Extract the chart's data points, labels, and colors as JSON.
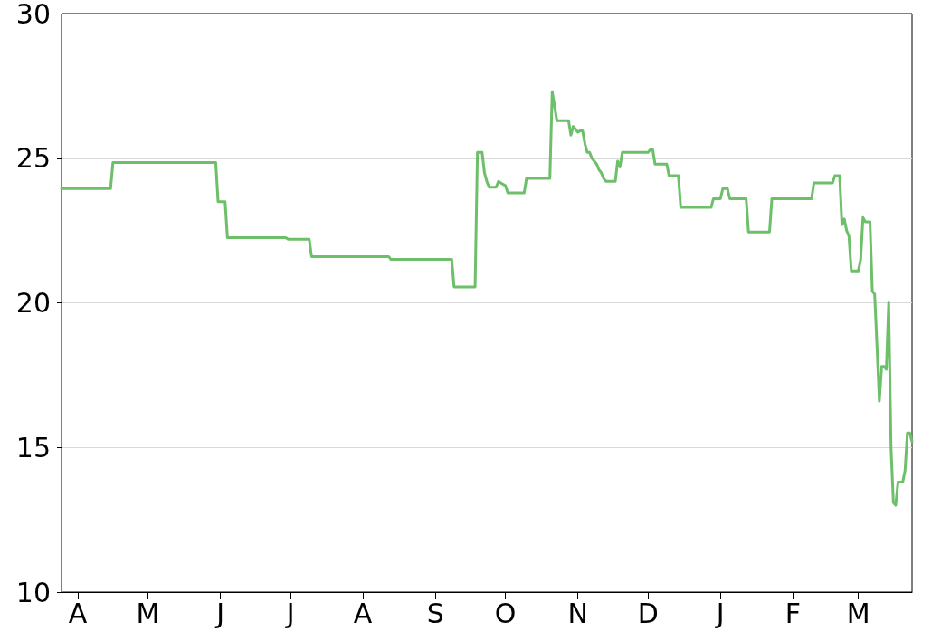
{
  "chart_data": {
    "type": "line",
    "color": "#6dbf6a",
    "categories": [
      null,
      null,
      null,
      null,
      null,
      null,
      null,
      "A",
      null,
      null,
      null,
      null,
      null,
      null,
      null,
      null,
      null,
      null,
      null,
      null,
      null,
      null,
      null,
      null,
      null,
      null,
      null,
      null,
      null,
      null,
      null,
      null,
      null,
      null,
      null,
      null,
      null,
      "M",
      null,
      null,
      null,
      null,
      null,
      null,
      null,
      null,
      null,
      null,
      null,
      null,
      null,
      null,
      null,
      null,
      null,
      null,
      null,
      null,
      null,
      null,
      null,
      null,
      null,
      null,
      null,
      null,
      null,
      null,
      "J",
      null,
      null,
      null,
      null,
      null,
      null,
      null,
      null,
      null,
      null,
      null,
      null,
      null,
      null,
      null,
      null,
      null,
      null,
      null,
      null,
      null,
      null,
      null,
      null,
      null,
      null,
      null,
      null,
      null,
      "J",
      null,
      null,
      null,
      null,
      null,
      null,
      null,
      null,
      null,
      null,
      null,
      null,
      null,
      null,
      null,
      null,
      null,
      null,
      null,
      null,
      null,
      null,
      null,
      null,
      null,
      null,
      null,
      null,
      null,
      null,
      "A",
      null,
      null,
      null,
      null,
      null,
      null,
      null,
      null,
      null,
      null,
      null,
      null,
      null,
      null,
      null,
      null,
      null,
      null,
      null,
      null,
      null,
      null,
      null,
      null,
      null,
      null,
      null,
      null,
      null,
      null,
      "S",
      null,
      null,
      null,
      null,
      null,
      null,
      null,
      null,
      null,
      null,
      null,
      null,
      null,
      null,
      null,
      null,
      null,
      null,
      null,
      null,
      null,
      null,
      null,
      null,
      null,
      null,
      null,
      null,
      null,
      "O",
      null,
      null,
      null,
      null,
      null,
      null,
      null,
      null,
      null,
      null,
      null,
      null,
      null,
      null,
      null,
      null,
      null,
      null,
      null,
      null,
      null,
      null,
      null,
      null,
      null,
      null,
      null,
      null,
      null,
      null,
      "N",
      null,
      null,
      null,
      null,
      null,
      null,
      null,
      null,
      null,
      null,
      null,
      null,
      null,
      null,
      null,
      null,
      null,
      null,
      null,
      null,
      null,
      null,
      null,
      null,
      null,
      null,
      null,
      null,
      null,
      "D",
      null,
      null,
      null,
      null,
      null,
      null,
      null,
      null,
      null,
      null,
      null,
      null,
      null,
      null,
      null,
      null,
      null,
      null,
      null,
      null,
      null,
      null,
      null,
      null,
      null,
      null,
      null,
      null,
      null,
      null,
      "J",
      null,
      null,
      null,
      null,
      null,
      null,
      null,
      null,
      null,
      null,
      null,
      null,
      null,
      null,
      null,
      null,
      null,
      null,
      null,
      null,
      null,
      null,
      null,
      null,
      null,
      null,
      null,
      null,
      null,
      null,
      "F",
      null,
      null,
      null,
      null,
      null,
      null,
      null,
      null,
      null,
      null,
      null,
      null,
      null,
      null,
      null,
      null,
      null,
      null,
      null,
      null,
      null,
      null,
      null,
      null,
      null,
      null,
      null,
      "M",
      null,
      null,
      null,
      null,
      null,
      null,
      null,
      null,
      null,
      null,
      null,
      null,
      null,
      null,
      null,
      null,
      null,
      null,
      null,
      null,
      null,
      null,
      null
    ],
    "values": [
      23.95,
      23.95,
      23.95,
      23.95,
      23.95,
      23.95,
      23.95,
      23.95,
      23.95,
      23.95,
      23.95,
      23.95,
      23.95,
      23.95,
      23.95,
      23.95,
      23.95,
      23.95,
      23.95,
      23.95,
      23.95,
      23.95,
      24.85,
      24.85,
      24.85,
      24.85,
      24.85,
      24.85,
      24.85,
      24.85,
      24.85,
      24.85,
      24.85,
      24.85,
      24.85,
      24.85,
      24.85,
      24.85,
      24.85,
      24.85,
      24.85,
      24.85,
      24.85,
      24.85,
      24.85,
      24.85,
      24.85,
      24.85,
      24.85,
      24.85,
      24.85,
      24.85,
      24.85,
      24.85,
      24.85,
      24.85,
      24.85,
      24.85,
      24.85,
      24.85,
      24.85,
      24.85,
      24.85,
      24.85,
      24.85,
      24.85,
      24.85,
      23.5,
      23.5,
      23.5,
      23.5,
      22.25,
      22.25,
      22.25,
      22.25,
      22.25,
      22.25,
      22.25,
      22.25,
      22.25,
      22.25,
      22.25,
      22.25,
      22.25,
      22.25,
      22.25,
      22.25,
      22.25,
      22.25,
      22.25,
      22.25,
      22.25,
      22.25,
      22.25,
      22.25,
      22.25,
      22.25,
      22.2,
      22.2,
      22.2,
      22.2,
      22.2,
      22.2,
      22.2,
      22.2,
      22.2,
      22.2,
      21.6,
      21.6,
      21.6,
      21.6,
      21.6,
      21.6,
      21.6,
      21.6,
      21.6,
      21.6,
      21.6,
      21.6,
      21.6,
      21.6,
      21.6,
      21.6,
      21.6,
      21.6,
      21.6,
      21.6,
      21.6,
      21.6,
      21.6,
      21.6,
      21.6,
      21.6,
      21.6,
      21.6,
      21.6,
      21.6,
      21.6,
      21.6,
      21.6,
      21.6,
      21.5,
      21.5,
      21.5,
      21.5,
      21.5,
      21.5,
      21.5,
      21.5,
      21.5,
      21.5,
      21.5,
      21.5,
      21.5,
      21.5,
      21.5,
      21.5,
      21.5,
      21.5,
      21.5,
      21.5,
      21.5,
      21.5,
      21.5,
      21.5,
      21.5,
      21.5,
      21.5,
      20.55,
      20.55,
      20.55,
      20.55,
      20.55,
      20.55,
      20.55,
      20.55,
      20.55,
      20.55,
      25.2,
      25.2,
      25.2,
      24.5,
      24.2,
      24.0,
      24.0,
      24.0,
      24.0,
      24.2,
      24.15,
      24.1,
      24.05,
      23.8,
      23.8,
      23.8,
      23.8,
      23.8,
      23.8,
      23.8,
      23.8,
      24.3,
      24.3,
      24.3,
      24.3,
      24.3,
      24.3,
      24.3,
      24.3,
      24.3,
      24.3,
      24.3,
      27.3,
      26.8,
      26.3,
      26.3,
      26.3,
      26.3,
      26.3,
      26.3,
      25.8,
      26.1,
      26.0,
      25.9,
      25.95,
      25.95,
      25.5,
      25.2,
      25.2,
      25.0,
      24.9,
      24.8,
      24.6,
      24.5,
      24.3,
      24.2,
      24.2,
      24.2,
      24.2,
      24.2,
      24.9,
      24.7,
      25.2,
      25.2,
      25.2,
      25.2,
      25.2,
      25.2,
      25.2,
      25.2,
      25.2,
      25.2,
      25.2,
      25.2,
      25.3,
      25.3,
      24.8,
      24.8,
      24.8,
      24.8,
      24.8,
      24.8,
      24.4,
      24.4,
      24.4,
      24.4,
      24.4,
      23.3,
      23.3,
      23.3,
      23.3,
      23.3,
      23.3,
      23.3,
      23.3,
      23.3,
      23.3,
      23.3,
      23.3,
      23.3,
      23.3,
      23.6,
      23.6,
      23.6,
      23.6,
      23.95,
      23.95,
      23.95,
      23.6,
      23.6,
      23.6,
      23.6,
      23.6,
      23.6,
      23.6,
      23.6,
      22.45,
      22.45,
      22.45,
      22.45,
      22.45,
      22.45,
      22.45,
      22.45,
      22.45,
      22.45,
      23.6,
      23.6,
      23.6,
      23.6,
      23.6,
      23.6,
      23.6,
      23.6,
      23.6,
      23.6,
      23.6,
      23.6,
      23.6,
      23.6,
      23.6,
      23.6,
      23.6,
      23.6,
      24.15,
      24.15,
      24.15,
      24.15,
      24.15,
      24.15,
      24.15,
      24.15,
      24.15,
      24.4,
      24.4,
      24.4,
      22.7,
      22.9,
      22.5,
      22.3,
      21.1,
      21.1,
      21.1,
      21.1,
      21.5,
      22.95,
      22.8,
      22.8,
      22.8,
      20.4,
      20.3,
      18.5,
      16.6,
      17.8,
      17.8,
      17.7,
      20.0,
      15.0,
      13.1,
      13.0,
      13.8,
      13.8,
      13.8,
      14.2,
      15.5,
      15.5,
      15.2
    ],
    "ylim": [
      10,
      30
    ],
    "yticks": [
      10,
      15,
      20,
      25,
      30
    ],
    "grid": "y",
    "marker": "none",
    "line_style": "solid"
  }
}
